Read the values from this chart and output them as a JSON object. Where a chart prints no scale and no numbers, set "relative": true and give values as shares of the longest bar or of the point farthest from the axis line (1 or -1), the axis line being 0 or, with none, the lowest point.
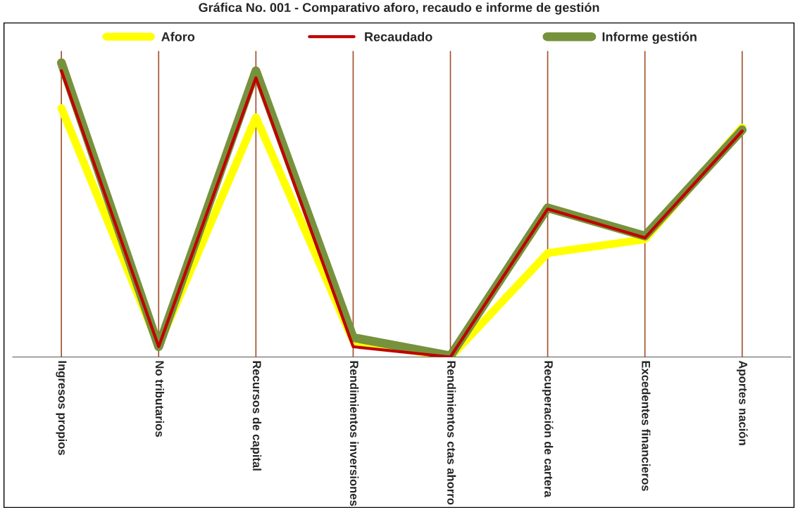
{
  "chart_data": {
    "type": "line",
    "title": "Gráfica No. 001 - Comparativo aforo, recaudo e informe de gestión",
    "relative": true,
    "categories": [
      "Ingresos propios",
      "No tributarios",
      "Recursos de capital",
      "Rendimientos inversiones",
      "Rendimientos ctas ahorro",
      "Recuperación de cartera",
      "Excedentes financieros",
      "Aportes nación"
    ],
    "series": [
      {
        "name": "Aforo",
        "color": "#ffff00",
        "values": [
          0.846,
          0.039,
          0.815,
          0.055,
          0,
          0.353,
          0.4,
          0.78
        ]
      },
      {
        "name": "Recaudado",
        "color": "#c00000",
        "values": [
          0.973,
          0.035,
          0.949,
          0.035,
          0,
          0.503,
          0.405,
          0.768
        ]
      },
      {
        "name": "Informe gestión",
        "color": "#76923c",
        "values": [
          1,
          0.035,
          0.973,
          0.066,
          0.004,
          0.507,
          0.411,
          0.772
        ]
      }
    ],
    "legend": "top",
    "grid": "x",
    "tick_labels": "x",
    "marker": "none",
    "line_style": "solid"
  }
}
